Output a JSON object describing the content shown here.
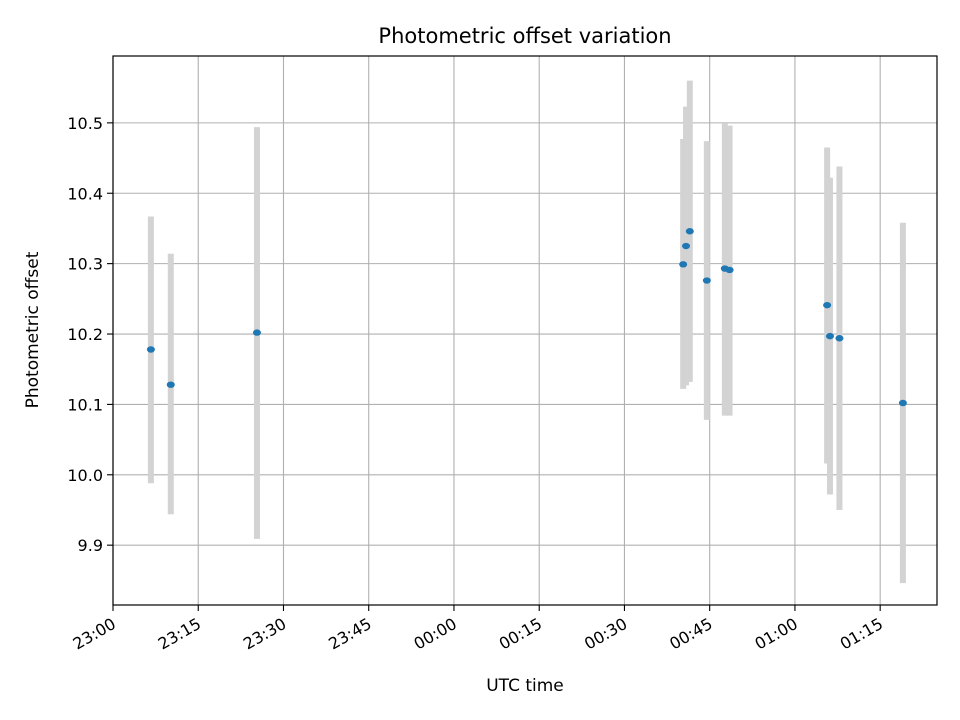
{
  "chart_data": {
    "type": "scatter",
    "title": "Photometric offset variation",
    "xlabel": "UTC time",
    "ylabel": "Photometric offset",
    "x_tick_labels": [
      "23:00",
      "23:15",
      "23:30",
      "23:45",
      "00:00",
      "00:15",
      "00:30",
      "00:45",
      "01:00",
      "01:15"
    ],
    "y_tick_labels": [
      "9.9",
      "10.0",
      "10.1",
      "10.2",
      "10.3",
      "10.4",
      "10.5"
    ],
    "y_ticks": [
      9.9,
      10.0,
      10.1,
      10.2,
      10.3,
      10.4,
      10.5
    ],
    "xlim": [
      "23:00",
      "01:25"
    ],
    "ylim": [
      9.815,
      10.595
    ],
    "grid": true,
    "legend": "none",
    "colors": {
      "point": "#1f77b4",
      "errorbar": "#d3d3d3",
      "grid": "#b0b0b0"
    },
    "points": [
      {
        "x": "23:06:40",
        "y": 10.178,
        "ylow": 9.988,
        "yhigh": 10.367
      },
      {
        "x": "23:10:10",
        "y": 10.128,
        "ylow": 9.944,
        "yhigh": 10.314
      },
      {
        "x": "23:25:20",
        "y": 10.202,
        "ylow": 9.909,
        "yhigh": 10.494
      },
      {
        "x": "00:40:20",
        "y": 10.299,
        "ylow": 10.122,
        "yhigh": 10.477
      },
      {
        "x": "00:40:50",
        "y": 10.325,
        "ylow": 10.127,
        "yhigh": 10.523
      },
      {
        "x": "00:41:30",
        "y": 10.346,
        "ylow": 10.132,
        "yhigh": 10.56
      },
      {
        "x": "00:44:30",
        "y": 10.276,
        "ylow": 10.078,
        "yhigh": 10.474
      },
      {
        "x": "00:47:40",
        "y": 10.293,
        "ylow": 10.084,
        "yhigh": 10.499
      },
      {
        "x": "00:48:30",
        "y": 10.291,
        "ylow": 10.084,
        "yhigh": 10.496
      },
      {
        "x": "01:05:40",
        "y": 10.241,
        "ylow": 10.016,
        "yhigh": 10.465
      },
      {
        "x": "01:06:10",
        "y": 10.197,
        "ylow": 9.972,
        "yhigh": 10.422
      },
      {
        "x": "01:07:50",
        "y": 10.194,
        "ylow": 9.95,
        "yhigh": 10.438
      },
      {
        "x": "01:19:00",
        "y": 10.102,
        "ylow": 9.846,
        "yhigh": 10.358
      }
    ]
  }
}
